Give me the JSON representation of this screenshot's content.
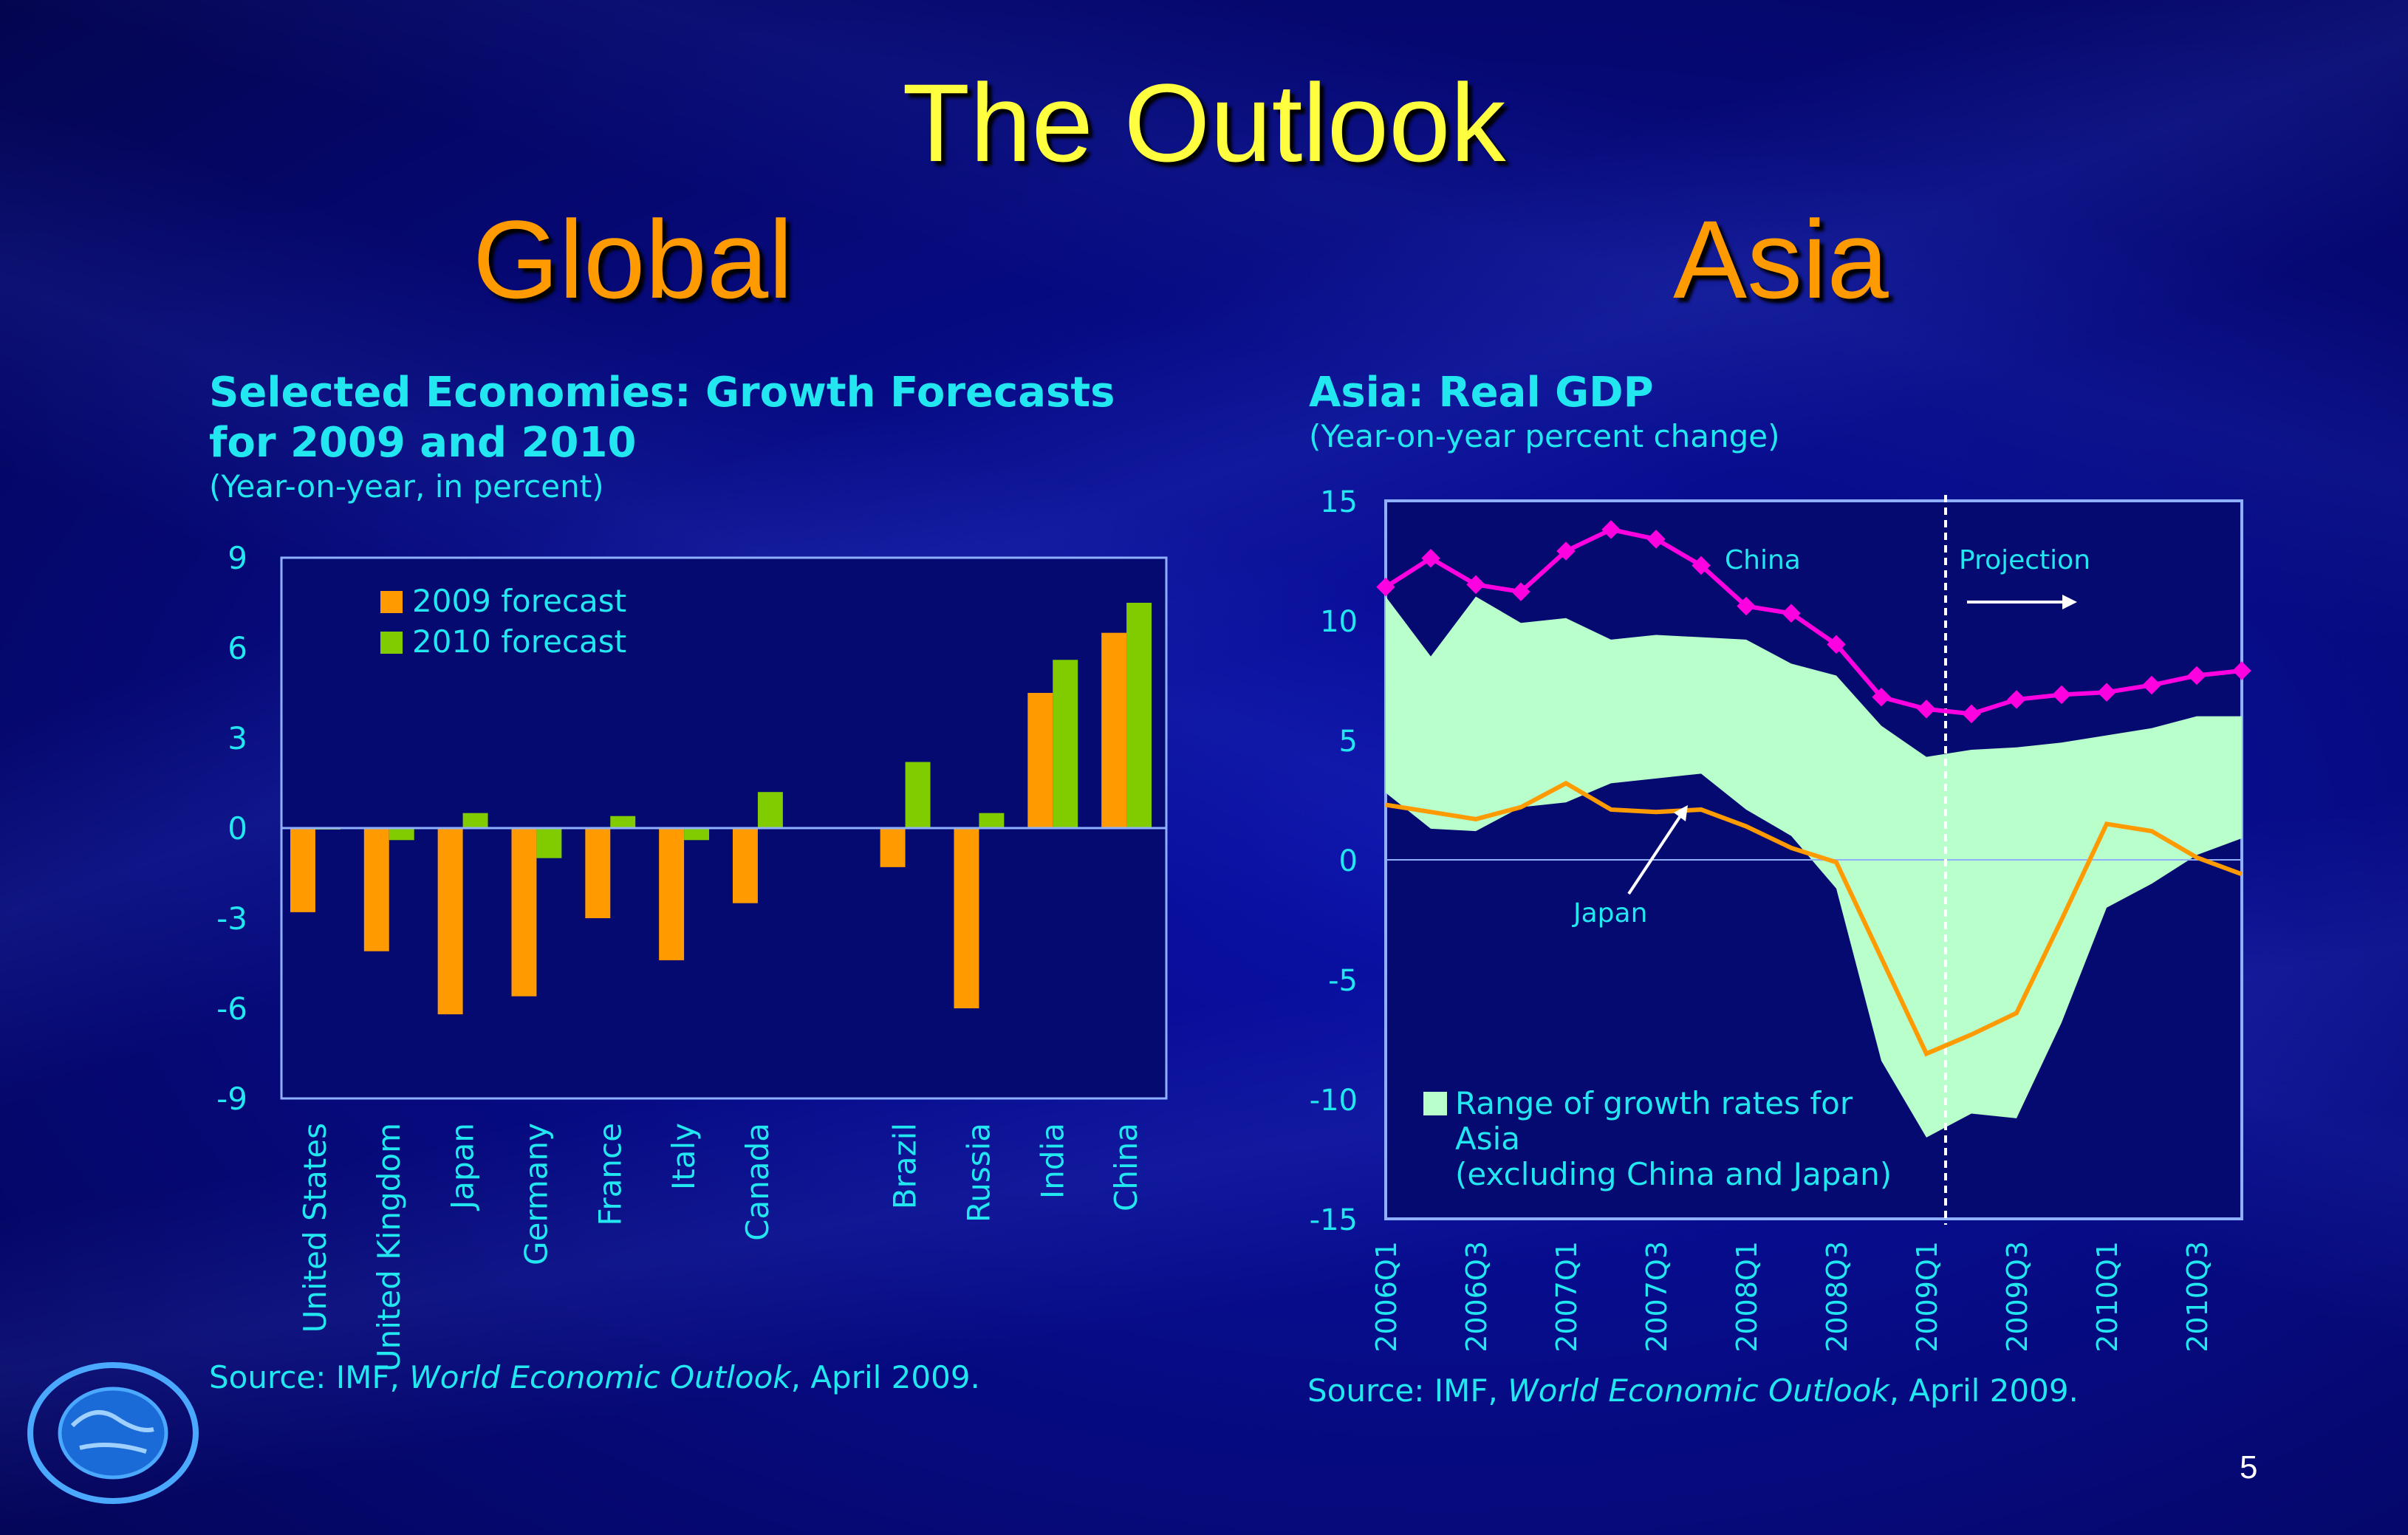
{
  "slide": {
    "title": "The Outlook",
    "left_heading": "Global",
    "right_heading": "Asia",
    "page_number": "5"
  },
  "colors": {
    "background": "#070c8a",
    "title": "#ffff40",
    "heading": "#ff9a00",
    "text": "#22e6f0",
    "series_2009": "#ff9a00",
    "series_2010": "#80cc00",
    "china": "#ff00e0",
    "japan": "#ff9a00",
    "range": "#b8ffcc"
  },
  "left_chart": {
    "title_line1": "Selected Economies: Growth Forecasts",
    "title_line2": "for 2009 and 2010",
    "subtitle": "(Year-on-year, in percent)",
    "source_prefix": "Source: IMF, ",
    "source_italic": "World Economic Outlook",
    "source_suffix": ", April 2009."
  },
  "right_chart": {
    "title": "Asia: Real GDP",
    "subtitle": "(Year-on-year percent change)",
    "source_prefix": "Source: IMF, ",
    "source_italic": "World Economic Outlook",
    "source_suffix": ", April 2009.",
    "annotation_china": "China",
    "annotation_japan": "Japan",
    "annotation_projection": "Projection",
    "legend_line1": "Range of growth rates for",
    "legend_line2": "Asia",
    "legend_line3": "(excluding China and Japan)"
  },
  "chart_data": [
    {
      "type": "bar",
      "categories": [
        "United States",
        "United Kingdom",
        "Japan",
        "Germany",
        "France",
        "Italy",
        "Canada",
        "Brazil",
        "Russia",
        "India",
        "China"
      ],
      "series": [
        {
          "name": "2009 forecast",
          "values": [
            -2.8,
            -4.1,
            -6.2,
            -5.6,
            -3.0,
            -4.4,
            -2.5,
            -1.3,
            -6.0,
            4.5,
            6.5
          ]
        },
        {
          "name": "2010 forecast",
          "values": [
            0.0,
            -0.4,
            0.5,
            -1.0,
            0.4,
            -0.4,
            1.2,
            2.2,
            0.5,
            5.6,
            7.5
          ]
        }
      ],
      "ylim": [
        -9,
        9
      ],
      "yticks": [
        9,
        6,
        3,
        0,
        -3,
        -6,
        -9
      ],
      "legend": "top-left",
      "grid": false
    },
    {
      "type": "line",
      "x": [
        "2006Q1",
        "2006Q2",
        "2006Q3",
        "2006Q4",
        "2007Q1",
        "2007Q2",
        "2007Q3",
        "2007Q4",
        "2008Q1",
        "2008Q2",
        "2008Q3",
        "2008Q4",
        "2009Q1",
        "2009Q2",
        "2009Q3",
        "2009Q4",
        "2010Q1",
        "2010Q2",
        "2010Q3",
        "2010Q4"
      ],
      "xticks": [
        "2006Q1",
        "2006Q3",
        "2007Q1",
        "2007Q3",
        "2008Q1",
        "2008Q3",
        "2009Q1",
        "2009Q3",
        "2010Q1",
        "2010Q3"
      ],
      "series": [
        {
          "name": "China",
          "values": [
            11.4,
            12.6,
            11.5,
            11.2,
            12.9,
            13.8,
            13.4,
            12.3,
            10.6,
            10.3,
            9.0,
            6.8,
            6.3,
            6.1,
            6.7,
            6.9,
            7.0,
            7.3,
            7.7,
            7.9
          ]
        },
        {
          "name": "Japan",
          "values": [
            2.3,
            2.0,
            1.7,
            2.2,
            3.2,
            2.1,
            2.0,
            2.1,
            1.4,
            0.5,
            -0.1,
            -4.1,
            -8.1,
            -7.3,
            -6.4,
            -2.5,
            1.5,
            1.2,
            0.1,
            -0.6
          ]
        }
      ],
      "range": {
        "name": "Range of growth rates for Asia (excluding China and Japan)",
        "upper": [
          11.0,
          8.5,
          11.0,
          9.9,
          10.1,
          9.2,
          9.4,
          9.3,
          9.2,
          8.2,
          7.7,
          5.6,
          4.3,
          4.6,
          4.7,
          4.9,
          5.2,
          5.5,
          6.0,
          6.0
        ],
        "lower": [
          2.8,
          1.3,
          1.2,
          2.2,
          2.4,
          3.2,
          3.4,
          3.6,
          2.1,
          1.0,
          -1.2,
          -8.4,
          -11.6,
          -10.6,
          -10.8,
          -6.8,
          -2.0,
          -1.0,
          0.2,
          0.9
        ]
      },
      "projection_start": "2009Q1",
      "ylim": [
        -15,
        15
      ],
      "yticks": [
        15,
        10,
        5,
        0,
        -5,
        -10,
        -15
      ],
      "grid": false
    }
  ]
}
